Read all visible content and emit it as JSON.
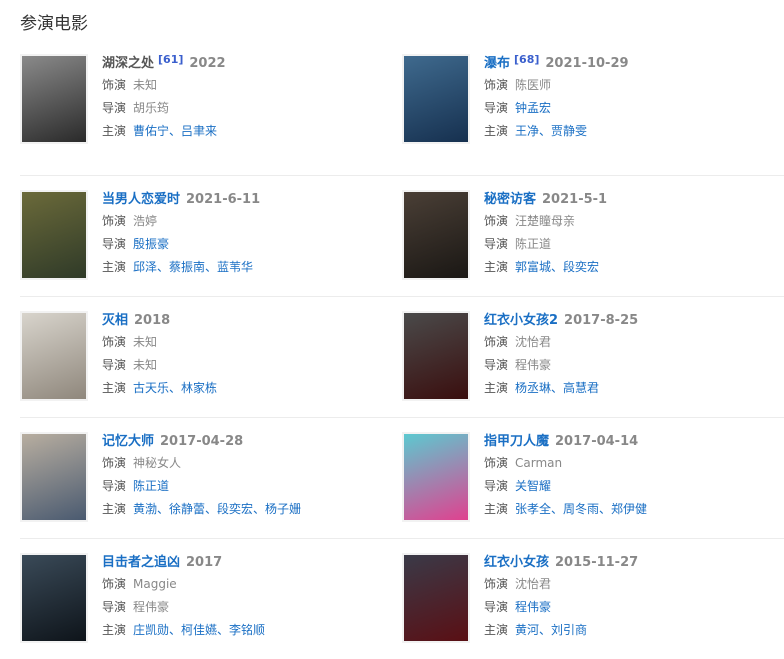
{
  "heading": "参演电影",
  "labels": {
    "role": "饰演",
    "director": "导演",
    "cast": "主演"
  },
  "movies": [
    {
      "title": "湖深之处",
      "title_link": false,
      "score": "[61]",
      "date": "2022",
      "role": "未知",
      "director": "胡乐筠",
      "director_link": false,
      "cast": "曹佑宁、吕聿来",
      "poster": [
        "#8a8a8a",
        "#2a2a2a"
      ]
    },
    {
      "title": "瀑布",
      "title_link": true,
      "score": "[68]",
      "date": "2021-10-29",
      "role": "陈医师",
      "director": "钟孟宏",
      "director_link": true,
      "cast": "王净、贾静雯",
      "poster": [
        "#3f6a8e",
        "#16304f"
      ]
    },
    {
      "title": "当男人恋爱时",
      "title_link": true,
      "score": "",
      "date": "2021-6-11",
      "role": "浩婷",
      "director": "殷振豪",
      "director_link": true,
      "cast": "邱泽、蔡振南、蓝苇华",
      "poster": [
        "#6b6a3a",
        "#2f3a28"
      ]
    },
    {
      "title": "秘密访客",
      "title_link": true,
      "score": "",
      "date": "2021-5-1",
      "role": "汪楚瞳母亲",
      "director": "陈正道",
      "director_link": false,
      "cast": "郭富城、段奕宏",
      "poster": [
        "#4a3f36",
        "#1a1714"
      ]
    },
    {
      "title": "灭相",
      "title_link": true,
      "score": "",
      "date": "2018",
      "role": "未知",
      "director": "未知",
      "director_link": false,
      "cast": "古天乐、林家栋",
      "poster": [
        "#d8d4cc",
        "#8f877c"
      ]
    },
    {
      "title": "红衣小女孩2",
      "title_link": true,
      "score": "",
      "date": "2017-8-25",
      "role": "沈怡君",
      "director": "程伟豪",
      "director_link": false,
      "cast": "杨丞琳、高慧君",
      "poster": [
        "#4a4a4a",
        "#3a0e0e"
      ]
    },
    {
      "title": "记忆大师",
      "title_link": true,
      "score": "",
      "date": "2017-04-28",
      "role": "神秘女人",
      "director": "陈正道",
      "director_link": true,
      "cast": "黄渤、徐静蕾、段奕宏、杨子姗",
      "poster": [
        "#b8aea0",
        "#4a5a70"
      ]
    },
    {
      "title": "指甲刀人魔",
      "title_link": true,
      "score": "",
      "date": "2017-04-14",
      "role": "Carman",
      "director": "关智耀",
      "director_link": true,
      "cast": "张孝全、周冬雨、郑伊健",
      "poster": [
        "#5cc9d0",
        "#e0418f"
      ]
    },
    {
      "title": "目击者之追凶",
      "title_link": true,
      "score": "",
      "date": "2017",
      "role": "Maggie",
      "director": "程伟豪",
      "director_link": false,
      "cast": "庄凯勋、柯佳嬿、李铭顺",
      "poster": [
        "#3a4a58",
        "#0e141a"
      ]
    },
    {
      "title": "红衣小女孩",
      "title_link": true,
      "score": "",
      "date": "2015-11-27",
      "role": "沈怡君",
      "director": "程伟豪",
      "director_link": true,
      "cast": "黄河、刘引商",
      "poster": [
        "#3a3a48",
        "#5a0f14"
      ]
    }
  ]
}
